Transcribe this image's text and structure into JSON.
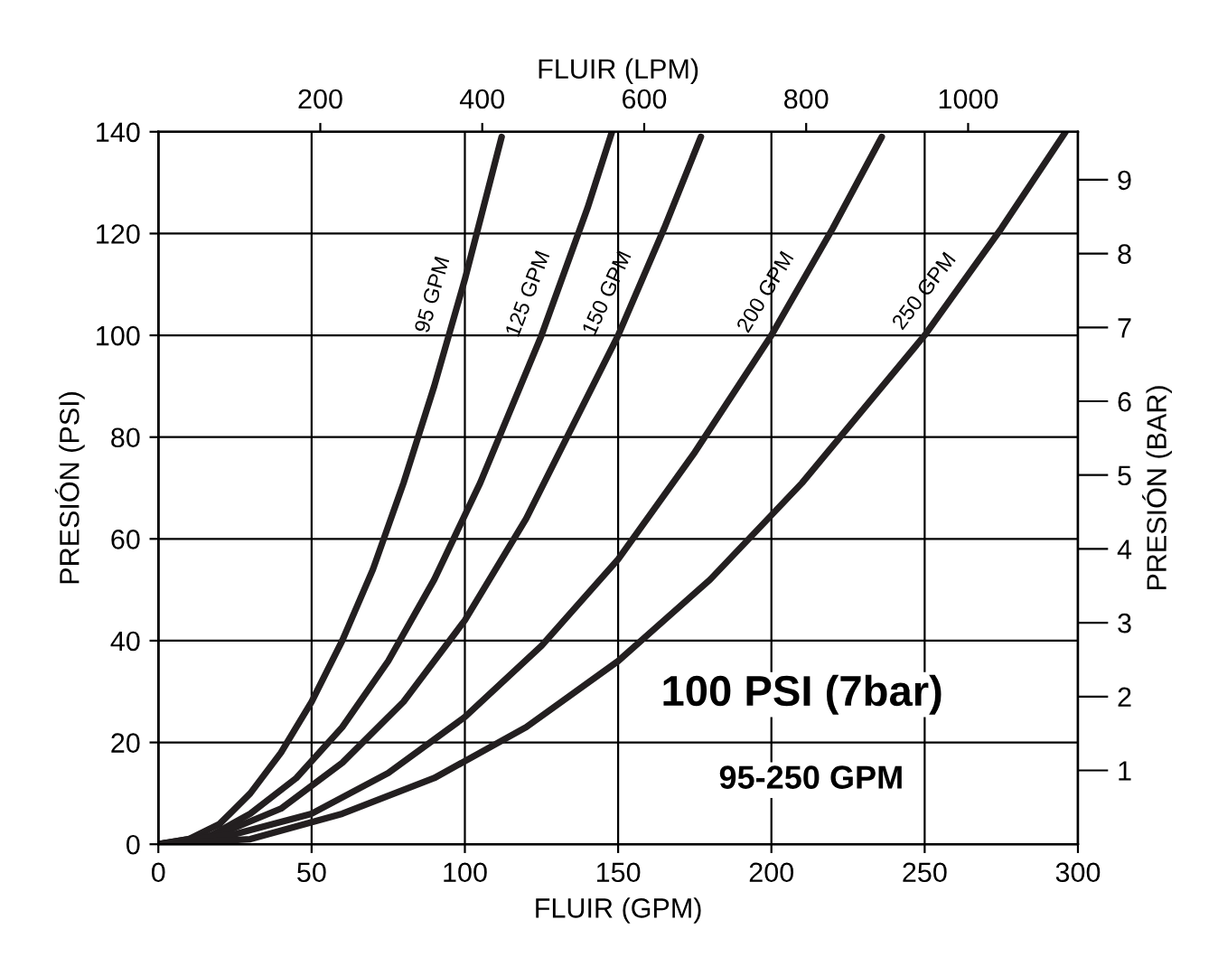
{
  "chart_data": {
    "type": "line",
    "xlabel": "FLUIR (GPM)",
    "ylabel": "PRESIÓN (PSI)",
    "y2label": "PRESIÓN (BAR)",
    "x2label": "FLUIR (LPM)",
    "xlim": [
      0,
      300
    ],
    "xticks": [
      0,
      50,
      100,
      150,
      200,
      250,
      300
    ],
    "ylim": [
      0,
      140
    ],
    "yticks": [
      0,
      20,
      40,
      60,
      80,
      100,
      120,
      140
    ],
    "x2lim": [
      0,
      1135.6
    ],
    "x2ticks": [
      200,
      400,
      600,
      800,
      1000
    ],
    "y2lim": [
      0,
      9.65
    ],
    "y2ticks": [
      1,
      2,
      3,
      4,
      5,
      6,
      7,
      8,
      9
    ],
    "grid": true,
    "line_style": "solid",
    "marker": "none",
    "series": [
      {
        "name": "95 GPM",
        "color": "#231f20",
        "x": [
          0,
          10,
          20,
          30,
          40,
          50,
          60,
          70,
          80,
          90,
          100,
          112
        ],
        "values": [
          0,
          1,
          4,
          10,
          18,
          28,
          40,
          54,
          71,
          90,
          111,
          139
        ]
      },
      {
        "name": "125 GPM",
        "color": "#231f20",
        "x": [
          0,
          15,
          30,
          45,
          60,
          75,
          90,
          105,
          125,
          140,
          148
        ],
        "values": [
          0,
          1,
          6,
          13,
          23,
          36,
          52,
          71,
          100,
          125,
          140
        ]
      },
      {
        "name": "150 GPM",
        "color": "#231f20",
        "x": [
          0,
          20,
          40,
          60,
          80,
          100,
          120,
          150,
          165,
          177
        ],
        "values": [
          0,
          2,
          7,
          16,
          28,
          44,
          64,
          100,
          121,
          139
        ]
      },
      {
        "name": "200 GPM",
        "color": "#231f20",
        "x": [
          0,
          25,
          50,
          75,
          100,
          125,
          150,
          175,
          200,
          220,
          236
        ],
        "values": [
          0,
          2,
          6,
          14,
          25,
          39,
          56,
          77,
          100,
          121,
          139
        ]
      },
      {
        "name": "250 GPM",
        "color": "#231f20",
        "x": [
          0,
          30,
          60,
          90,
          120,
          150,
          180,
          210,
          250,
          275,
          296
        ],
        "values": [
          0,
          1,
          6,
          13,
          23,
          36,
          52,
          71,
          100,
          121,
          140
        ]
      }
    ],
    "annotations": [
      "100 PSI (7bar)",
      "95-250 GPM"
    ]
  }
}
